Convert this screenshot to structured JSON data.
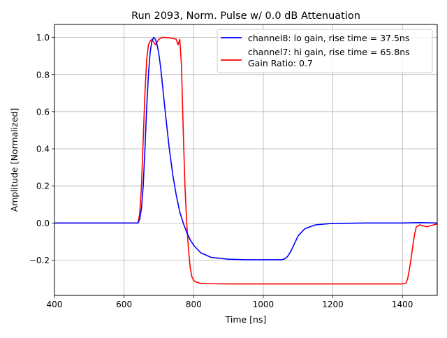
{
  "chart_data": {
    "type": "line",
    "title": "Run 2093, Norm. Pulse w/ 0.0 dB Attenuation",
    "xlabel": "Time [ns]",
    "ylabel": "Amplitude [Normalized]",
    "xlim": [
      400,
      1500
    ],
    "ylim": [
      -0.39,
      1.07
    ],
    "xticks": [
      400,
      600,
      800,
      1000,
      1200,
      1400
    ],
    "xtick_labels": [
      "400",
      "600",
      "800",
      "1000",
      "1200",
      "1400"
    ],
    "yticks": [
      -0.2,
      0.0,
      0.2,
      0.4,
      0.6,
      0.8,
      1.0
    ],
    "ytick_labels": [
      "−0.2",
      "0.0",
      "0.2",
      "0.4",
      "0.6",
      "0.8",
      "1.0"
    ],
    "grid": true,
    "legend_position": "top-right",
    "legend_extra_text": "Gain Ratio: 0.7",
    "series": [
      {
        "name": "channel8: lo gain, rise time = 37.5ns",
        "color": "#0000ff",
        "x": [
          400,
          640,
          645,
          650,
          655,
          660,
          665,
          670,
          675,
          680,
          685,
          690,
          695,
          700,
          705,
          710,
          715,
          720,
          730,
          740,
          750,
          760,
          770,
          780,
          790,
          800,
          820,
          850,
          900,
          950,
          1000,
          1030,
          1050,
          1060,
          1070,
          1080,
          1090,
          1100,
          1120,
          1150,
          1200,
          1300,
          1400,
          1450,
          1500
        ],
        "y": [
          0.0,
          0.0,
          0.02,
          0.08,
          0.2,
          0.4,
          0.62,
          0.8,
          0.92,
          0.98,
          1.0,
          0.99,
          0.96,
          0.91,
          0.84,
          0.75,
          0.66,
          0.57,
          0.4,
          0.26,
          0.15,
          0.06,
          0.0,
          -0.05,
          -0.09,
          -0.12,
          -0.16,
          -0.185,
          -0.195,
          -0.198,
          -0.198,
          -0.198,
          -0.198,
          -0.195,
          -0.18,
          -0.15,
          -0.11,
          -0.07,
          -0.03,
          -0.01,
          -0.002,
          0.0,
          0.0,
          0.002,
          0.0
        ]
      },
      {
        "name": "channel7: hi gain, rise time = 65.8ns",
        "color": "#ff0000",
        "x": [
          400,
          640,
          645,
          650,
          655,
          660,
          665,
          670,
          675,
          680,
          690,
          700,
          710,
          720,
          740,
          750,
          755,
          760,
          765,
          770,
          775,
          780,
          785,
          790,
          795,
          800,
          810,
          820,
          850,
          900,
          1000,
          1100,
          1200,
          1300,
          1400,
          1410,
          1415,
          1420,
          1425,
          1430,
          1435,
          1440,
          1450,
          1460,
          1470,
          1480,
          1490,
          1500
        ],
        "y": [
          0.0,
          0.0,
          0.05,
          0.2,
          0.45,
          0.7,
          0.88,
          0.96,
          0.98,
          0.99,
          0.96,
          0.99,
          1.0,
          1.0,
          0.995,
          0.99,
          0.96,
          0.99,
          0.85,
          0.5,
          0.2,
          0.0,
          -0.14,
          -0.24,
          -0.29,
          -0.31,
          -0.32,
          -0.325,
          -0.327,
          -0.328,
          -0.328,
          -0.328,
          -0.328,
          -0.328,
          -0.328,
          -0.325,
          -0.3,
          -0.25,
          -0.19,
          -0.12,
          -0.06,
          -0.02,
          -0.01,
          -0.015,
          -0.02,
          -0.015,
          -0.01,
          -0.005
        ]
      }
    ]
  }
}
